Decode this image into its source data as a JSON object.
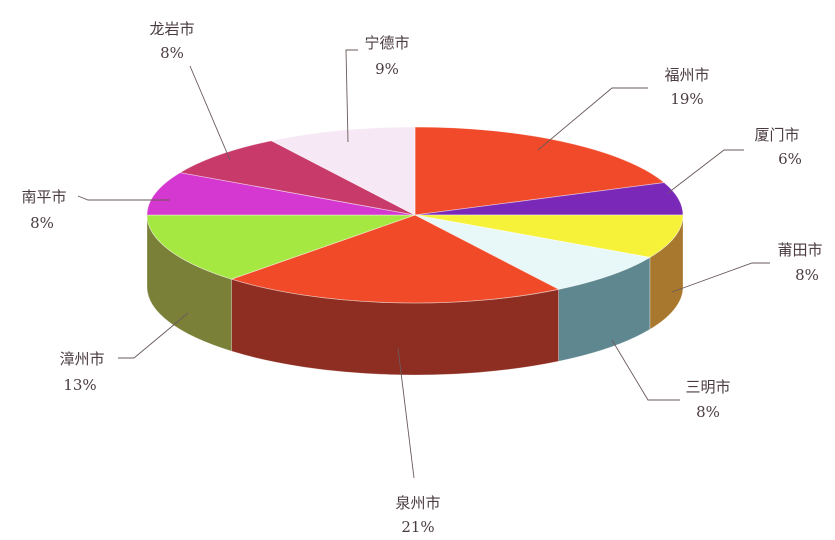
{
  "chart_data": {
    "type": "pie",
    "style": "3d",
    "slices": [
      {
        "name": "福州市",
        "label": "福州市",
        "pct_text": "19%",
        "value": 19,
        "color": "#F04A2A",
        "side": "#B0321E"
      },
      {
        "name": "厦门市",
        "label": "厦门市",
        "pct_text": "6%",
        "value": 6,
        "color": "#7A28B8",
        "side": "#5A1E88"
      },
      {
        "name": "莆田市",
        "label": "莆田市",
        "pct_text": "8%",
        "value": 8,
        "color": "#F6F23A",
        "side": "#A8782E"
      },
      {
        "name": "三明市",
        "label": "三明市",
        "pct_text": "8%",
        "value": 8,
        "color": "#E8F8F8",
        "side": "#5E8790"
      },
      {
        "name": "泉州市",
        "label": "泉州市",
        "pct_text": "21%",
        "value": 21,
        "color": "#F04A28",
        "side": "#8E2E22"
      },
      {
        "name": "漳州市",
        "label": "漳州市",
        "pct_text": "13%",
        "value": 13,
        "color": "#A6E842",
        "side": "#7A8038"
      },
      {
        "name": "南平市",
        "label": "南平市",
        "pct_text": "8%",
        "value": 8,
        "color": "#D438D0",
        "side": "#96309A"
      },
      {
        "name": "龙岩市",
        "label": "龙岩市",
        "pct_text": "8%",
        "value": 8,
        "color": "#C83A6A",
        "side": "#8A284C"
      },
      {
        "name": "宁德市",
        "label": "宁德市",
        "pct_text": "9%",
        "value": 9,
        "color": "#F6E8F4",
        "side": "#C8B8C4"
      }
    ]
  }
}
